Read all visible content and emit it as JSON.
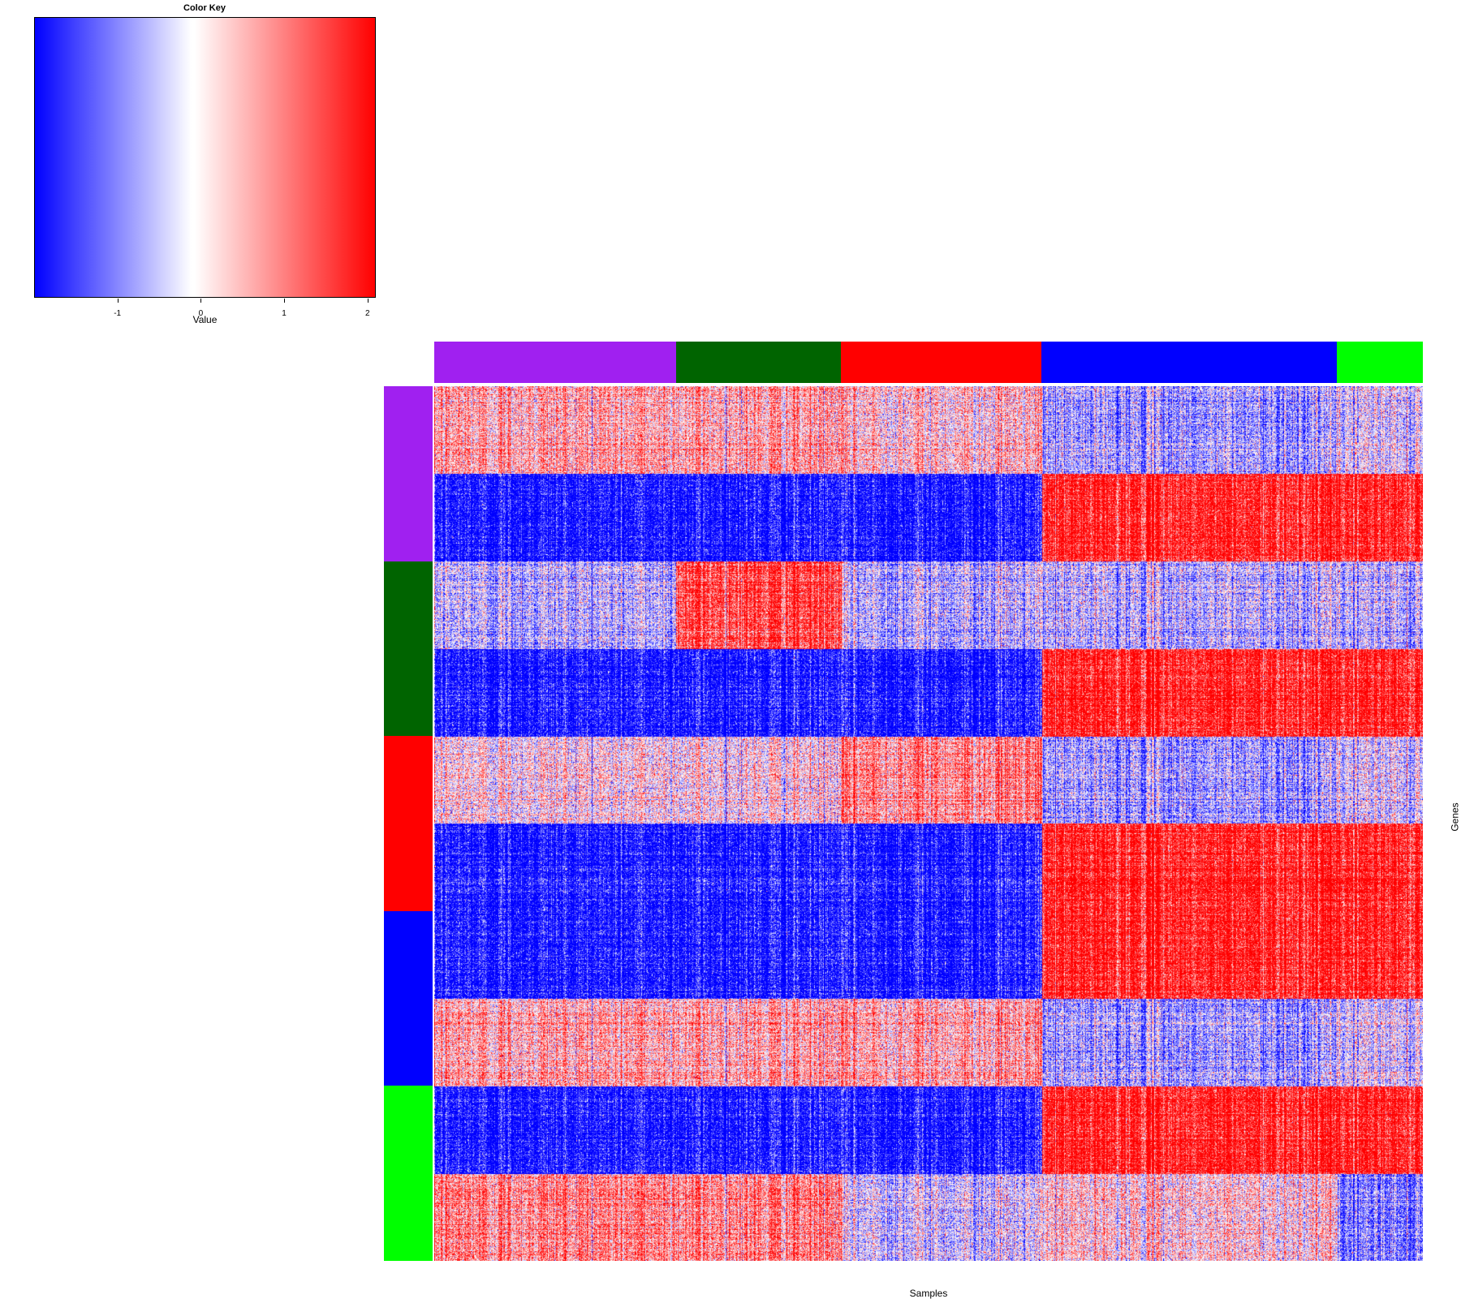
{
  "chart_data": {
    "type": "heatmap",
    "title": "Color Key",
    "color_key": {
      "xlabel": "Value",
      "range": [
        -2,
        2.1
      ],
      "ticks": [
        -1,
        0,
        1,
        2
      ],
      "tick_labels": [
        "-1",
        "0",
        "1",
        "2"
      ],
      "colors": {
        "low": "#0000ff",
        "mid": "#ffffff",
        "high": "#ff0000"
      }
    },
    "xlabel": "Samples",
    "ylabel": "Genes",
    "column_groups": [
      {
        "name": "purple",
        "color": "#a020f0",
        "n_samples": 171
      },
      {
        "name": "darkgreen",
        "color": "#006400",
        "n_samples": 117
      },
      {
        "name": "red",
        "color": "#ff0000",
        "n_samples": 142
      },
      {
        "name": "blue",
        "color": "#0000ff",
        "n_samples": 209
      },
      {
        "name": "green",
        "color": "#00ff00",
        "n_samples": 61
      }
    ],
    "row_groups": [
      {
        "name": "purple",
        "color": "#a020f0",
        "n_genes": 200
      },
      {
        "name": "darkgreen",
        "color": "#006400",
        "n_genes": 200
      },
      {
        "name": "red",
        "color": "#ff0000",
        "n_genes": 200
      },
      {
        "name": "blue",
        "color": "#0000ff",
        "n_genes": 200
      },
      {
        "name": "green",
        "color": "#00ff00",
        "n_genes": 200
      }
    ],
    "block_means": [
      [
        0.7,
        0.7,
        0.4,
        -0.7,
        -0.2
      ],
      [
        -2.0,
        -2.0,
        -2.0,
        2.0,
        2.0
      ],
      [
        -0.5,
        1.6,
        -0.5,
        -0.5,
        -0.5
      ],
      [
        -2.0,
        -2.0,
        -2.0,
        2.0,
        2.0
      ],
      [
        0.2,
        0.2,
        1.0,
        -0.7,
        -0.2
      ],
      [
        -2.0,
        -2.0,
        -2.0,
        2.0,
        2.0
      ],
      [
        -2.0,
        -2.0,
        -2.0,
        2.0,
        2.0
      ],
      [
        0.7,
        0.7,
        0.7,
        -0.7,
        -0.2
      ],
      [
        -2.0,
        -2.0,
        -2.0,
        2.0,
        2.0
      ],
      [
        1.0,
        1.0,
        -0.3,
        0.3,
        -1.0
      ]
    ]
  }
}
